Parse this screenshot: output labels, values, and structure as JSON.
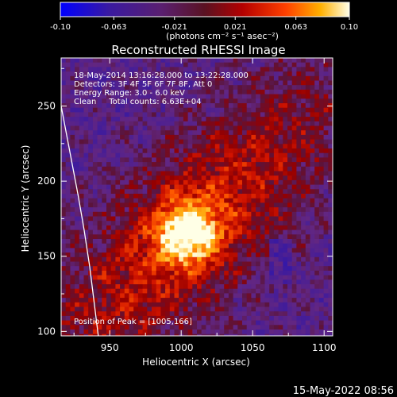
{
  "chart_data": {
    "type": "heatmap",
    "title": "Reconstructed RHESSI Image",
    "colorbar": {
      "ticks": [
        "-0.10",
        "-0.063",
        "-0.021",
        "0.021",
        "0.063",
        "0.10"
      ],
      "tick_values": [
        -0.1,
        -0.063,
        -0.021,
        0.021,
        0.063,
        0.1
      ],
      "range": [
        -0.1,
        0.1
      ],
      "units_label": "(photons cm⁻² s⁻¹ asec⁻²)"
    },
    "annotations": [
      "18-May-2014 13:16:28.000 to 13:22:28.000",
      "Detectors: 3F 4F 5F 6F 7F 8F, Att 0",
      "Energy Range: 3.0 - 6.0 keV",
      "Clean     Total counts: 6.63E+04"
    ],
    "peak_label": "Position of Peak = [1005,166]",
    "peak": {
      "x": 1005,
      "y": 166
    },
    "xlabel": "Heliocentric X (arcsec)",
    "ylabel": "Heliocentric Y (arcsec)",
    "x_ticks": [
      "950",
      "1000",
      "1050",
      "1100"
    ],
    "x_tick_values": [
      950,
      1000,
      1050,
      1100
    ],
    "y_ticks": [
      "100",
      "150",
      "200",
      "250"
    ],
    "y_tick_values": [
      100,
      150,
      200,
      250
    ],
    "xlim": [
      916,
      1106
    ],
    "ylim": [
      97,
      282
    ],
    "limb_curve": [
      [
        916,
        250
      ],
      [
        920,
        230
      ],
      [
        924,
        210
      ],
      [
        928,
        190
      ],
      [
        932,
        168
      ],
      [
        936,
        143
      ],
      [
        939,
        120
      ],
      [
        942,
        97
      ]
    ]
  },
  "footer": {
    "timestamp": "15-May-2022 08:56"
  }
}
